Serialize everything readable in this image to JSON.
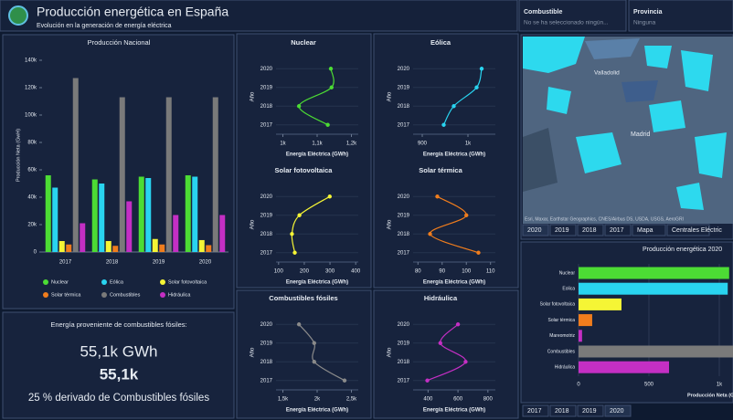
{
  "header": {
    "title": "Producción energética en España",
    "subtitle": "Evolución en la generación de energía eléctrica"
  },
  "filters": [
    {
      "label": "Combustible",
      "value": "No se ha seleccionado ningún..."
    },
    {
      "label": "Provincia",
      "value": "Ninguna"
    }
  ],
  "summary": {
    "heading": "Energía proveniente de combustibles fósiles:",
    "lines": [
      "55,1k GWh",
      "55,1k",
      "25 % derivado de Combustibles fósiles"
    ]
  },
  "map": {
    "labels": [
      "Valladolid",
      "Madrid"
    ],
    "attribution": "Esri, Maxar, Earthstar Geographics, CNES/Airbus DS, USDA, USGS, AeroGRI"
  },
  "map_tabs": [
    "2020",
    "2019",
    "2018",
    "2017",
    "Mapa",
    "Centrales Eléctric"
  ],
  "chart_tabs": [
    "2017",
    "2018",
    "2019",
    "2020"
  ],
  "chart_data": [
    {
      "type": "bar",
      "title": "Producción Nacional",
      "y_label": "Producción Neta (GwH)",
      "categories": [
        "2017",
        "2018",
        "2019",
        "2020"
      ],
      "ylim": [
        0,
        140000
      ],
      "yticks": [
        0,
        {
          "value": 20000,
          "label": "20k"
        },
        {
          "value": 40000,
          "label": "40k"
        },
        {
          "value": 60000,
          "label": "60k"
        },
        {
          "value": 80000,
          "label": "80k"
        },
        {
          "value": 100000,
          "label": "100k"
        },
        {
          "value": 120000,
          "label": "120k"
        },
        {
          "value": 140000,
          "label": "140k"
        }
      ],
      "series": [
        {
          "name": "Nuclear",
          "color": "#4cdc34",
          "values": [
            56000,
            53000,
            55000,
            56000
          ]
        },
        {
          "name": "Eólica",
          "color": "#29d4f0",
          "values": [
            47000,
            50000,
            54000,
            55000
          ]
        },
        {
          "name": "Solar fotovoltaica",
          "color": "#f5f535",
          "values": [
            8000,
            8000,
            9500,
            8700
          ]
        },
        {
          "name": "Solar térmica",
          "color": "#f07d1d",
          "values": [
            5500,
            4500,
            5500,
            5000
          ]
        },
        {
          "name": "Combustibles",
          "color": "#7a7a7a",
          "values": [
            127000,
            113000,
            113000,
            113000
          ]
        },
        {
          "name": "Hidráulica",
          "color": "#c42fc4",
          "values": [
            21000,
            37000,
            27000,
            27000
          ]
        }
      ]
    },
    {
      "type": "line",
      "title": "Nuclear",
      "color": "#4cdc34",
      "x_label": "Energía Eléctrica (GWh)",
      "y_label": "Año",
      "y": [
        2020,
        2019,
        2018,
        2017
      ],
      "values": [
        1140,
        1142,
        1047,
        1131
      ],
      "xlim": [
        980,
        1220
      ],
      "xticks": [
        {
          "value": 1000,
          "label": "1k"
        },
        {
          "value": 1100,
          "label": "1,1k"
        },
        {
          "value": 1200,
          "label": "1,2k"
        }
      ],
      "ylim": [
        2016.5,
        2020.5
      ],
      "yticks": [
        2017,
        2018,
        2019,
        2020
      ]
    },
    {
      "type": "line",
      "title": "Eólica",
      "color": "#29d4f0",
      "x_label": "Energía Eléctrica (GWh)",
      "y_label": "Año",
      "y": [
        2020,
        2019,
        2018,
        2017
      ],
      "values": [
        1030,
        1019,
        969,
        947
      ],
      "xlim": [
        880,
        1060
      ],
      "xticks": [
        900,
        {
          "value": 1000,
          "label": "1k"
        }
      ],
      "ylim": [
        2016.5,
        2020.5
      ],
      "yticks": [
        2017,
        2018,
        2019,
        2020
      ]
    },
    {
      "type": "line",
      "title": "Solar fotovoltaica",
      "color": "#f5f535",
      "x_label": "Energía Eléctrica (GWh)",
      "y_label": "Año",
      "y": [
        2020,
        2019,
        2018,
        2017
      ],
      "values": [
        299,
        181,
        152,
        163
      ],
      "xlim": [
        90,
        410
      ],
      "xticks": [
        100,
        200,
        300,
        400
      ],
      "ylim": [
        2016.5,
        2020.5
      ],
      "yticks": [
        2017,
        2018,
        2019,
        2020
      ]
    },
    {
      "type": "line",
      "title": "Solar térmica",
      "color": "#f07d1d",
      "x_label": "Energía Eléctrica (GWh)",
      "y_label": "Año",
      "y": [
        2020,
        2019,
        2018,
        2017
      ],
      "values": [
        88,
        100,
        85,
        105
      ],
      "xlim": [
        78,
        112
      ],
      "xticks": [
        80,
        90,
        100,
        110
      ],
      "ylim": [
        2016.5,
        2020.5
      ],
      "yticks": [
        2017,
        2018,
        2019,
        2020
      ]
    },
    {
      "type": "line",
      "title": "Combustibles fósiles",
      "color": "#8a8a8a",
      "x_label": "Energía Eléctrica (GWh)",
      "y_label": "Año",
      "y": [
        2020,
        2019,
        2018,
        2017
      ],
      "values": [
        1735,
        1957,
        1957,
        2400
      ],
      "xlim": [
        1400,
        2600
      ],
      "xticks": [
        {
          "value": 1500,
          "label": "1,5k"
        },
        {
          "value": 2000,
          "label": "2k"
        },
        {
          "value": 2500,
          "label": "2,5k"
        }
      ],
      "ylim": [
        2016.5,
        2020.5
      ],
      "yticks": [
        2017,
        2018,
        2019,
        2020
      ]
    },
    {
      "type": "line",
      "title": "Hidráulica",
      "color": "#c42fc4",
      "x_label": "Energía Eléctrica (GWh)",
      "y_label": "Año",
      "y": [
        2020,
        2019,
        2018,
        2017
      ],
      "values": [
        600,
        482,
        651,
        395
      ],
      "xlim": [
        300,
        850
      ],
      "xticks": [
        400,
        600,
        800
      ],
      "ylim": [
        2016.5,
        2020.5
      ],
      "yticks": [
        2017,
        2018,
        2019,
        2020
      ]
    },
    {
      "type": "hbar",
      "title": "Producción energética 2020",
      "x_label": "Producción Neta (GWh)",
      "categories": [
        "Nuclear",
        "Eolica",
        "Solar fotovoltaica",
        "Solar térmica",
        "Mareomotriz",
        "Combustibles",
        "Hidráulica"
      ],
      "values": [
        1070,
        1060,
        305,
        97,
        25,
        1100,
        643
      ],
      "colors": [
        "#4cdc34",
        "#29d4f0",
        "#f5f535",
        "#f07d1d",
        "#c42fc4",
        "#7a7a7a",
        "#c42fc4"
      ],
      "xlim": [
        0,
        1100
      ],
      "xticks": [
        0,
        500,
        {
          "value": 1000,
          "label": "1k"
        }
      ]
    }
  ]
}
